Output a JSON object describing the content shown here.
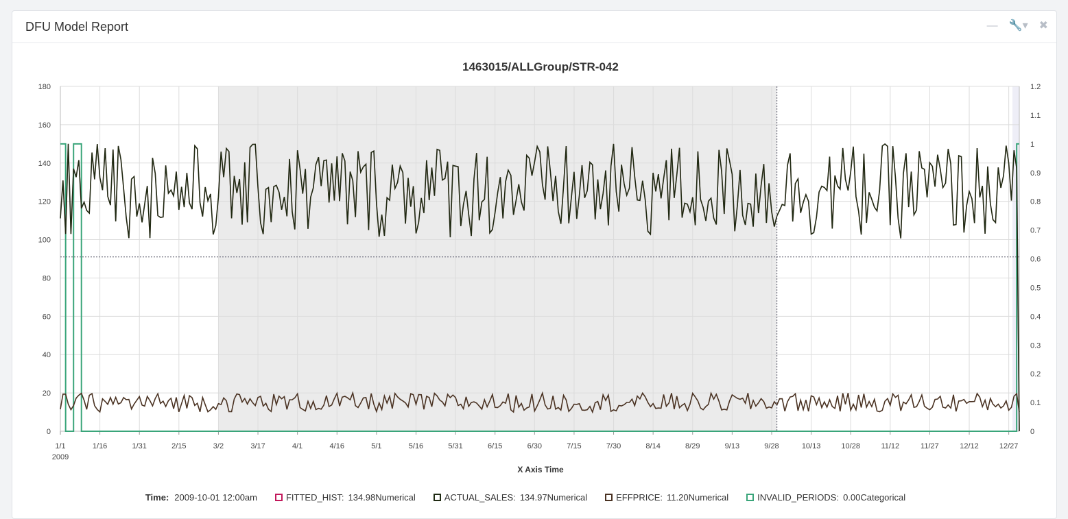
{
  "panel": {
    "title": "DFU Model Report",
    "icons": [
      "minimize-icon",
      "wrench-icon",
      "close-icon"
    ]
  },
  "chart_data": {
    "type": "line",
    "title": "1463015/ALLGroup/STR-042",
    "xlabel": "X Axis Time",
    "x_year_label": "2009",
    "x_ticks": [
      "1/1",
      "1/16",
      "1/31",
      "2/15",
      "3/2",
      "3/17",
      "4/1",
      "4/16",
      "5/1",
      "5/16",
      "5/31",
      "6/15",
      "6/30",
      "7/15",
      "7/30",
      "8/14",
      "8/29",
      "9/13",
      "9/28",
      "10/13",
      "10/28",
      "11/12",
      "11/27",
      "12/12",
      "12/27"
    ],
    "y_left": {
      "min": 0,
      "max": 180,
      "ticks": [
        0,
        20,
        40,
        60,
        80,
        100,
        120,
        140,
        160,
        180
      ]
    },
    "y_right": {
      "min": 0,
      "max": 1.2,
      "ticks": [
        "0",
        "0.1",
        "0.2",
        "0.3",
        "0.4",
        "0.5",
        "0.6",
        "0.7",
        "0.8",
        "0.9",
        "1",
        "1.1",
        "1.2"
      ]
    },
    "x_range_days": [
      0,
      364
    ],
    "shaded_region_days": [
      60,
      272
    ],
    "crosshair": {
      "x_day": 272,
      "y_value": 91
    },
    "series": [
      {
        "name": "FITTED_HIST",
        "color": "#c2185b",
        "axis": "left",
        "kind": "sales"
      },
      {
        "name": "ACTUAL_SALES",
        "color": "#1f2a12",
        "axis": "left",
        "kind": "sales"
      },
      {
        "name": "EFFPRICE",
        "color": "#4a3222",
        "axis": "left",
        "kind": "price"
      },
      {
        "name": "INVALID_PERIODS",
        "color": "#3aa57a",
        "axis": "right",
        "kind": "invalid"
      }
    ],
    "sales_range": [
      100,
      150
    ],
    "price_range": [
      10,
      20
    ],
    "invalid_periods_days": [
      [
        0,
        1
      ],
      [
        5,
        7
      ],
      [
        363,
        364
      ]
    ]
  },
  "legend": {
    "time_label": "Time:",
    "time_value": "2009-10-01 12:00am",
    "items": [
      {
        "name": "FITTED_HIST:",
        "value": "134.98Numerical",
        "color": "#c2185b"
      },
      {
        "name": "ACTUAL_SALES:",
        "value": "134.97Numerical",
        "color": "#1f2a12"
      },
      {
        "name": "EFFPRICE:",
        "value": "11.20Numerical",
        "color": "#4a3222"
      },
      {
        "name": "INVALID_PERIODS:",
        "value": "0.00Categorical",
        "color": "#3aa57a"
      }
    ]
  }
}
